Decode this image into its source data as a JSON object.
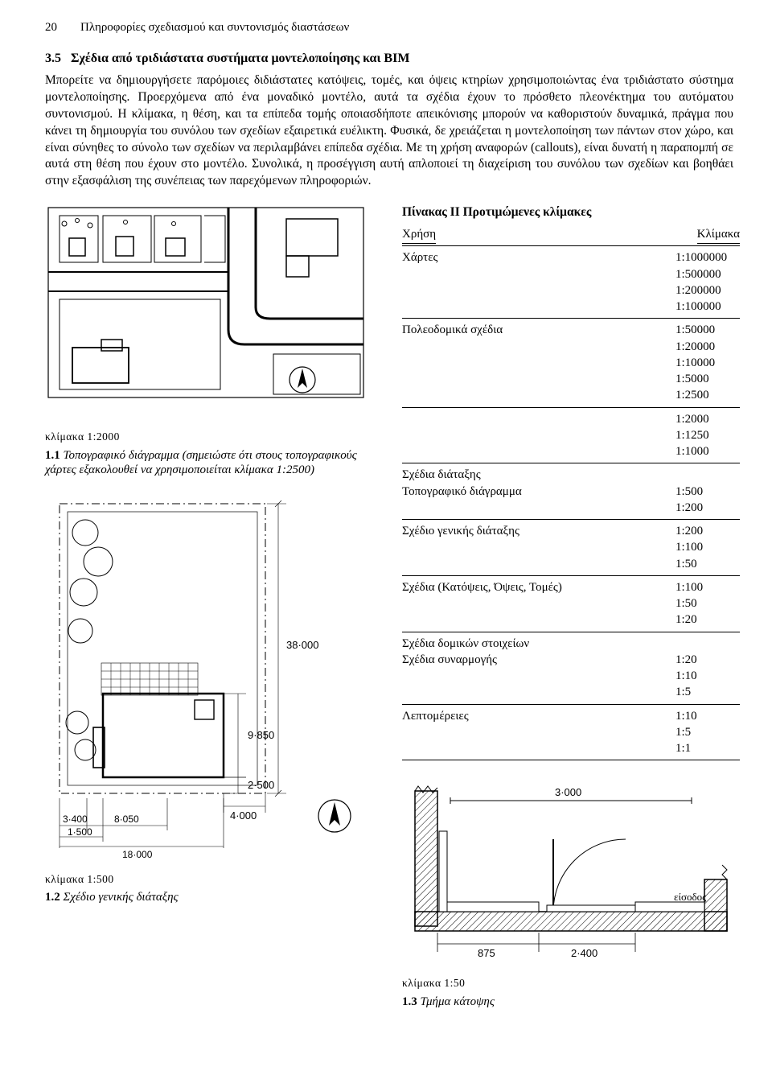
{
  "page": {
    "number": "20",
    "running_head": "Πληροφορίες σχεδιασμού και συντονισμός διαστάσεων"
  },
  "section": {
    "number": "3.5",
    "title": "Σχέδια από τριδιάστατα συστήματα μοντελοποίησης και BIM",
    "body": "Μπορείτε να δημιουργήσετε παρόμοιες διδιάστατες κατόψεις, τομές, και όψεις κτηρίων χρησιμοποιώντας ένα τριδιάστατο σύστημα μοντελοποίησης. Προερχόμενα από ένα μοναδικό μοντέλο, αυτά τα σχέδια έχουν το πρόσθετο πλεονέκτημα του αυτόματου συντονισμού. Η κλίμακα, η θέση, και τα επίπεδα τομής οποιασδήποτε απεικόνισης μπορούν να καθοριστούν δυναμικά, πράγμα που κάνει τη δημιουργία του συνόλου των σχεδίων εξαιρετικά ευέλικτη. Φυσικά, δε χρειάζεται η μοντελοποίηση των πάντων στον χώρο, και είναι σύνηθες το σύνολο των σχεδίων να περιλαμβάνει επίπεδα σχέδια. Με τη χρήση αναφορών (callouts), είναι δυνατή η παραπομπή σε αυτά στη θέση που έχουν στο μοντέλο. Συνολικά, η προσέγγιση αυτή απλοποιεί τη διαχείριση του συνόλου των σχεδίων και βοηθάει στην εξασφάλιση της συνέπειας των παρεχόμενων πληροφοριών."
  },
  "figures": {
    "fig1": {
      "scale_label": "κλίμακα 1:2000",
      "num": "1.1",
      "caption": "Τοπογραφικό διάγραμμα (σημειώστε ότι στους τοπογραφικούς χάρτες εξακολουθεί να χρησιμοποιείται κλίμακα 1:2500)"
    },
    "fig2": {
      "scale_label": "κλίμακα 1:500",
      "num": "1.2",
      "caption": "Σχέδιο γενικής διάταξης",
      "dim_38": "38·000",
      "dim_9850": "9·850",
      "dim_2500": "2·500",
      "dim_4000": "4·000",
      "dim_3400": "3·400",
      "dim_8050": "8·050",
      "dim_1500": "1·500",
      "dim_18000": "18·000"
    },
    "fig3": {
      "scale_label": "κλίμακα 1:50",
      "num": "1.3",
      "caption": "Τμήμα κάτοψης",
      "entrance": "είσοδος",
      "dim_3000": "3·000",
      "dim_875": "875",
      "dim_2400": "2·400"
    }
  },
  "table": {
    "title": "Πίνακας II  Προτιμώμενες κλίμακες",
    "head_use": "Χρήση",
    "head_scale": "Κλίμακα",
    "groups": [
      {
        "rows": [
          {
            "use": "Χάρτες",
            "scale": "1:1000000"
          },
          {
            "use": "",
            "scale": "1:500000"
          },
          {
            "use": "",
            "scale": "1:200000"
          },
          {
            "use": "",
            "scale": "1:100000"
          }
        ]
      },
      {
        "rows": [
          {
            "use": "Πολεοδομικά σχέδια",
            "scale": "1:50000"
          },
          {
            "use": "",
            "scale": "1:20000"
          },
          {
            "use": "",
            "scale": "1:10000"
          },
          {
            "use": "",
            "scale": "1:5000"
          },
          {
            "use": "",
            "scale": "1:2500"
          }
        ]
      },
      {
        "rows": [
          {
            "use": "",
            "scale": "1:2000"
          },
          {
            "use": "",
            "scale": "1:1250"
          },
          {
            "use": "",
            "scale": "1:1000"
          }
        ]
      },
      {
        "rows": [
          {
            "use": "Σχέδια διάταξης",
            "scale": ""
          },
          {
            "use": "Τοπογραφικό διάγραμμα",
            "scale": "1:500"
          },
          {
            "use": "",
            "scale": "1:200"
          }
        ],
        "noTop": true
      },
      {
        "rows": [
          {
            "use": "Σχέδιο γενικής διάταξης",
            "scale": "1:200"
          },
          {
            "use": "",
            "scale": "1:100"
          },
          {
            "use": "",
            "scale": "1:50"
          }
        ],
        "noTop": true
      },
      {
        "rows": [
          {
            "use": "Σχέδια (Κατόψεις, Όψεις, Τομές)",
            "scale": "1:100"
          },
          {
            "use": "",
            "scale": "1:50"
          },
          {
            "use": "",
            "scale": "1:20"
          }
        ],
        "noTop": true
      },
      {
        "rows": [
          {
            "use": "Σχέδια δομικών στοιχείων",
            "scale": ""
          },
          {
            "use": "Σχέδια συναρμογής",
            "scale": "1:20"
          },
          {
            "use": "",
            "scale": "1:10"
          },
          {
            "use": "",
            "scale": "1:5"
          }
        ]
      },
      {
        "rows": [
          {
            "use": "Λεπτομέρειες",
            "scale": "1:10"
          },
          {
            "use": "",
            "scale": "1:5"
          },
          {
            "use": "",
            "scale": "1:1"
          }
        ]
      }
    ]
  }
}
